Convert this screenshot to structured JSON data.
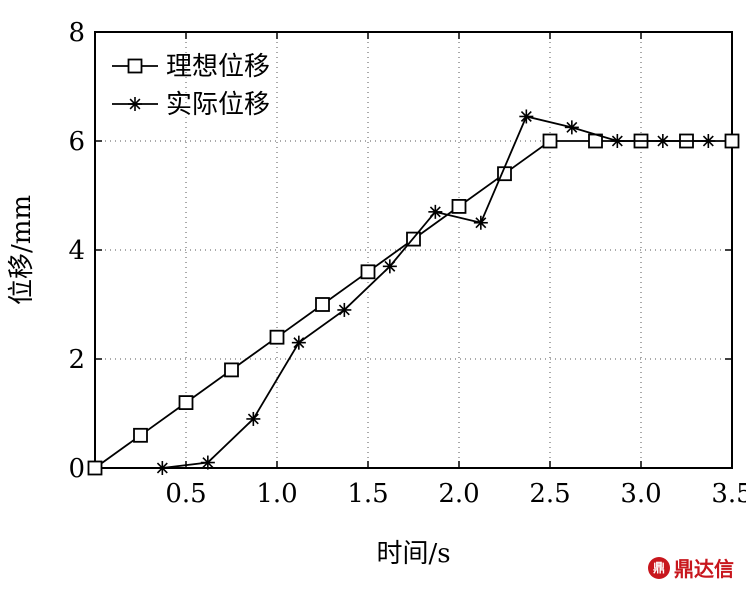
{
  "chart_data": {
    "type": "line",
    "xlabel": "时间/s",
    "ylabel": "位移/mm",
    "xlim": [
      0,
      3.5
    ],
    "ylim": [
      0,
      8
    ],
    "x_ticks": [
      "0.5",
      "1.0",
      "1.5",
      "2.0",
      "2.5",
      "3.0",
      "3.5"
    ],
    "x_tick_values": [
      0.5,
      1.0,
      1.5,
      2.0,
      2.5,
      3.0,
      3.5
    ],
    "y_ticks": [
      "0",
      "2",
      "4",
      "6",
      "8"
    ],
    "y_tick_values": [
      0,
      2,
      4,
      6,
      8
    ],
    "grid": true,
    "legend_position": "top-left",
    "series": [
      {
        "name": "理想位移",
        "marker": "square",
        "color": "#000000",
        "x": [
          0,
          0.25,
          0.5,
          0.75,
          1.0,
          1.25,
          1.5,
          1.75,
          2.0,
          2.25,
          2.5,
          2.75,
          3.0,
          3.25,
          3.5
        ],
        "y": [
          0,
          0.6,
          1.2,
          1.8,
          2.4,
          3.0,
          3.6,
          4.2,
          4.8,
          5.4,
          6.0,
          6.0,
          6.0,
          6.0,
          6.0
        ]
      },
      {
        "name": "实际位移",
        "marker": "star",
        "color": "#000000",
        "x": [
          0.37,
          0.62,
          0.87,
          1.12,
          1.37,
          1.62,
          1.87,
          2.12,
          2.37,
          2.62,
          2.87,
          3.12,
          3.37
        ],
        "y": [
          0,
          0.1,
          0.9,
          2.3,
          2.9,
          3.7,
          4.7,
          4.5,
          6.45,
          6.25,
          6.0,
          6.0,
          6.0
        ]
      }
    ]
  },
  "watermark": {
    "logo_text": "鼎",
    "text": "鼎达信",
    "color": "#c8161d"
  }
}
